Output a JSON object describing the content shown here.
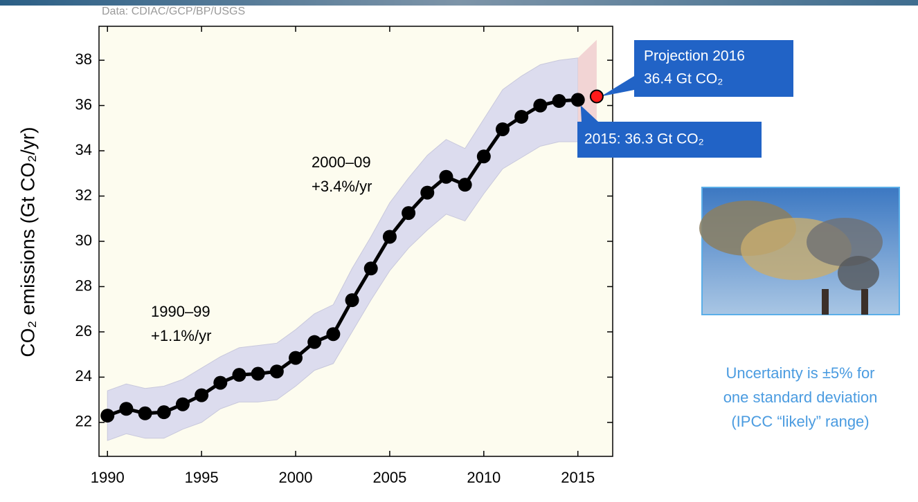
{
  "chart_data": {
    "type": "line",
    "source": "Data: CDIAC/GCP/BP/USGS",
    "y_label": "CO₂ emissions (Gt CO₂/yr)",
    "x": [
      1990,
      1991,
      1992,
      1993,
      1994,
      1995,
      1996,
      1997,
      1998,
      1999,
      2000,
      2001,
      2002,
      2003,
      2004,
      2005,
      2006,
      2007,
      2008,
      2009,
      2010,
      2011,
      2012,
      2013,
      2014,
      2015
    ],
    "values": [
      22.3,
      22.6,
      22.4,
      22.45,
      22.8,
      23.2,
      23.75,
      24.1,
      24.15,
      24.25,
      24.85,
      25.55,
      25.9,
      27.4,
      28.8,
      30.2,
      31.25,
      32.15,
      32.85,
      32.5,
      33.75,
      34.95,
      35.5,
      36.0,
      36.2,
      36.25
    ],
    "color": "#000000",
    "band": {
      "color": "#dcdcee",
      "lower": [
        21.2,
        21.5,
        21.3,
        21.3,
        21.7,
        22.0,
        22.6,
        22.9,
        22.9,
        23.0,
        23.6,
        24.3,
        24.6,
        26.0,
        27.4,
        28.7,
        29.7,
        30.5,
        31.2,
        30.9,
        32.1,
        33.2,
        33.7,
        34.2,
        34.4,
        34.4
      ],
      "upper": [
        23.4,
        23.7,
        23.5,
        23.6,
        23.9,
        24.4,
        24.9,
        25.3,
        25.4,
        25.5,
        26.1,
        26.8,
        27.2,
        28.8,
        30.2,
        31.7,
        32.8,
        33.8,
        34.5,
        34.1,
        35.4,
        36.7,
        37.3,
        37.8,
        38.0,
        38.1
      ]
    },
    "projection": {
      "x": 2016,
      "value": 36.4,
      "color": "#ff1a1a"
    },
    "projection_band": {
      "color": "#f2d4d4",
      "x": [
        2015,
        2016
      ],
      "lower": [
        34.4,
        34.6
      ],
      "upper": [
        38.1,
        38.9
      ]
    },
    "xlim": [
      1989.55,
      2016.85
    ],
    "ylim": [
      20.5,
      39.5
    ],
    "xticks": [
      1990,
      1995,
      2000,
      2005,
      2010,
      2015
    ],
    "yticks": [
      22,
      24,
      26,
      28,
      30,
      32,
      34,
      36,
      38
    ],
    "annotations": [
      [
        "1990–99",
        "+1.1%/yr"
      ],
      [
        "2000–09",
        "+3.4%/yr"
      ]
    ],
    "callouts": [
      [
        "Projection 2016",
        "36.4 Gt CO₂"
      ],
      [
        "2015: 36.3 Gt CO₂"
      ]
    ],
    "note": [
      "Uncertainty is ±5% for",
      "one standard deviation",
      "(IPCC “likely” range)"
    ]
  }
}
